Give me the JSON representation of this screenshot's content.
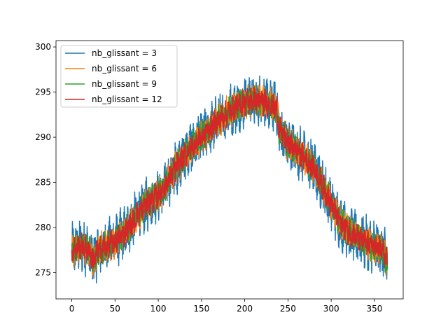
{
  "chart_data": {
    "type": "line",
    "title": "",
    "xlabel": "",
    "ylabel": "",
    "xlim": [
      -18.25,
      383.25
    ],
    "ylim": [
      272.1,
      300.7
    ],
    "xticks": [
      0,
      50,
      100,
      150,
      200,
      250,
      300,
      350
    ],
    "yticks": [
      275,
      280,
      285,
      290,
      295,
      300
    ],
    "legend_position": "top-left",
    "grid": false,
    "profile": {
      "x": [
        0,
        10,
        20,
        25,
        30,
        40,
        50,
        60,
        70,
        80,
        90,
        100,
        110,
        120,
        130,
        140,
        150,
        160,
        170,
        180,
        190,
        200,
        210,
        220,
        230,
        237,
        240,
        250,
        260,
        270,
        280,
        290,
        300,
        310,
        320,
        330,
        340,
        350,
        360,
        365
      ],
      "y": [
        277.5,
        277.9,
        277.6,
        276.2,
        277.4,
        277.9,
        278.5,
        279.3,
        280.6,
        281.9,
        282.9,
        283.6,
        284.9,
        286.6,
        287.9,
        289.1,
        290.0,
        291.0,
        291.9,
        292.7,
        293.4,
        293.9,
        294.1,
        294.0,
        293.6,
        293.2,
        290.8,
        289.3,
        288.6,
        287.6,
        286.6,
        284.6,
        282.6,
        280.6,
        279.6,
        278.9,
        278.3,
        277.9,
        277.4,
        276.0
      ]
    },
    "series": [
      {
        "name": "nb_glissant = 3",
        "color": "#1f77b4",
        "band": 2.4
      },
      {
        "name": "nb_glissant = 6",
        "color": "#ff7f0e",
        "band": 1.5
      },
      {
        "name": "nb_glissant = 9",
        "color": "#2ca02c",
        "band": 1.35
      },
      {
        "name": "nb_glissant = 12",
        "color": "#d62728",
        "band": 1.2
      }
    ]
  }
}
